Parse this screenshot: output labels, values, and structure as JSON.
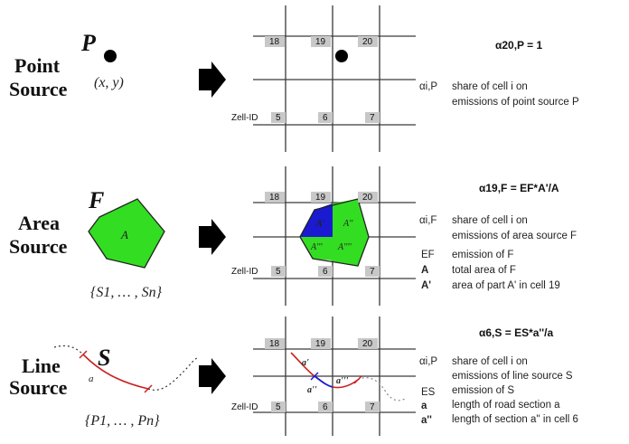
{
  "point_section": {
    "title_line1": "Point",
    "title_line2": "Source",
    "symbol": "P",
    "coords": "(x, y)",
    "cells": [
      "18",
      "19",
      "20"
    ],
    "cells_bottom": [
      "5",
      "6",
      "7"
    ],
    "zell_label": "Zell-ID",
    "formula": "α20,P = 1",
    "legend": [
      {
        "symbol": "αi,P",
        "text": "share of cell i on"
      },
      {
        "symbol": "",
        "text": "emissions of point source P"
      }
    ]
  },
  "area_section": {
    "title_line1": "Area",
    "title_line2": "Source",
    "symbol": "F",
    "area_label": "A",
    "set_label": "{S1, … , Sn}",
    "cells": [
      "18",
      "19",
      "20"
    ],
    "cells_bottom": [
      "5",
      "6",
      "7"
    ],
    "zell_label": "Zell-ID",
    "part_labels": [
      "A'",
      "A''",
      "A'''",
      "A''''"
    ],
    "formula": "α19,F = EF*A'/A",
    "legend": [
      {
        "symbol": "αi,F",
        "text": "share of cell i on"
      },
      {
        "symbol": "",
        "text": "emissions of area source F"
      },
      {
        "symbol": "EF",
        "text": "emission of F"
      },
      {
        "symbol": "A",
        "text": "total area of F"
      },
      {
        "symbol": "A'",
        "text": "area of part A' in cell 19"
      }
    ],
    "colors": {
      "area": "#33dd22",
      "part": "#1a1ad0"
    }
  },
  "line_section": {
    "title_line1": "Line",
    "title_line2": "Source",
    "symbol": "S",
    "segment_label": "a",
    "set_label": "{P1, … , Pn}",
    "cells": [
      "18",
      "19",
      "20"
    ],
    "cells_bottom": [
      "5",
      "6",
      "7"
    ],
    "zell_label": "Zell-ID",
    "part_labels": [
      "a'",
      "a''",
      "a'''"
    ],
    "formula": "α6,S = ES*a''/a",
    "legend": [
      {
        "symbol": "αi,P",
        "text": "share of cell i on"
      },
      {
        "symbol": "",
        "text": "emissions of line source S"
      },
      {
        "symbol": "ES",
        "text": "emission of S"
      },
      {
        "symbol": "a",
        "text": "length of road section a"
      },
      {
        "symbol": "a''",
        "text": "length of section a'' in cell 6"
      }
    ],
    "colors": {
      "road": "#cc2222",
      "part": "#1a1ad0"
    }
  }
}
